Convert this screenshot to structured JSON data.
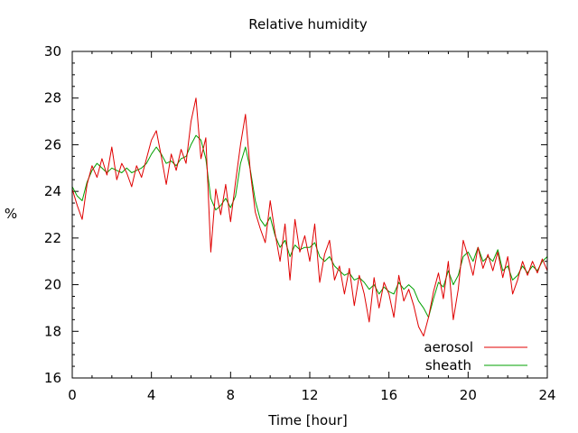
{
  "chart_data": {
    "type": "line",
    "title": "Relative humidity",
    "xlabel": "Time [hour]",
    "ylabel": "%",
    "xlim": [
      0,
      24
    ],
    "ylim": [
      16,
      30
    ],
    "x_ticks": [
      "0",
      "4",
      "8",
      "12",
      "16",
      "20",
      "24"
    ],
    "y_ticks": [
      "16",
      "18",
      "20",
      "22",
      "24",
      "26",
      "28",
      "30"
    ],
    "grid": false,
    "legend_position": "bottom-right",
    "series": [
      {
        "name": "aerosol",
        "color": "#e00000",
        "x": [
          0,
          0.25,
          0.5,
          0.75,
          1.0,
          1.25,
          1.5,
          1.75,
          2.0,
          2.25,
          2.5,
          2.75,
          3.0,
          3.25,
          3.5,
          3.75,
          4.0,
          4.25,
          4.5,
          4.75,
          5.0,
          5.25,
          5.5,
          5.75,
          6.0,
          6.25,
          6.5,
          6.75,
          7.0,
          7.25,
          7.5,
          7.75,
          8.0,
          8.25,
          8.5,
          8.75,
          9.0,
          9.25,
          9.5,
          9.75,
          10.0,
          10.25,
          10.5,
          10.75,
          11.0,
          11.25,
          11.5,
          11.75,
          12.0,
          12.25,
          12.5,
          12.75,
          13.0,
          13.25,
          13.5,
          13.75,
          14.0,
          14.25,
          14.5,
          14.75,
          15.0,
          15.25,
          15.5,
          15.75,
          16.0,
          16.25,
          16.5,
          16.75,
          17.0,
          17.25,
          17.5,
          17.75,
          18.0,
          18.25,
          18.5,
          18.75,
          19.0,
          19.25,
          19.5,
          19.75,
          20.0,
          20.25,
          20.5,
          20.75,
          21.0,
          21.25,
          21.5,
          21.75,
          22.0,
          22.25,
          22.5,
          22.75,
          23.0,
          23.25,
          23.5,
          23.75,
          24.0
        ],
        "values": [
          24.1,
          23.4,
          22.8,
          24.3,
          25.1,
          24.6,
          25.4,
          24.7,
          25.9,
          24.5,
          25.2,
          24.8,
          24.2,
          25.1,
          24.6,
          25.4,
          26.2,
          26.6,
          25.5,
          24.3,
          25.6,
          24.9,
          25.8,
          25.2,
          27.0,
          28.0,
          25.4,
          26.3,
          21.4,
          24.1,
          23.0,
          24.3,
          22.7,
          24.4,
          26.0,
          27.3,
          24.8,
          23.1,
          22.4,
          21.8,
          23.6,
          22.2,
          21.0,
          22.6,
          20.2,
          22.8,
          21.4,
          22.1,
          21.0,
          22.6,
          20.1,
          21.3,
          21.9,
          20.2,
          20.8,
          19.6,
          20.7,
          19.1,
          20.4,
          19.6,
          18.4,
          20.3,
          19.0,
          20.1,
          19.6,
          18.6,
          20.4,
          19.3,
          19.8,
          19.1,
          18.2,
          17.8,
          18.6,
          19.7,
          20.5,
          19.4,
          21.0,
          18.5,
          19.8,
          21.9,
          21.2,
          20.4,
          21.6,
          20.7,
          21.3,
          20.6,
          21.4,
          20.3,
          21.2,
          19.6,
          20.2,
          21.0,
          20.4,
          21.0,
          20.5,
          21.1,
          20.6
        ]
      },
      {
        "name": "sheath",
        "color": "#00a000",
        "x": [
          0,
          0.25,
          0.5,
          0.75,
          1.0,
          1.25,
          1.5,
          1.75,
          2.0,
          2.25,
          2.5,
          2.75,
          3.0,
          3.25,
          3.5,
          3.75,
          4.0,
          4.25,
          4.5,
          4.75,
          5.0,
          5.25,
          5.5,
          5.75,
          6.0,
          6.25,
          6.5,
          6.75,
          7.0,
          7.25,
          7.5,
          7.75,
          8.0,
          8.25,
          8.5,
          8.75,
          9.0,
          9.25,
          9.5,
          9.75,
          10.0,
          10.25,
          10.5,
          10.75,
          11.0,
          11.25,
          11.5,
          11.75,
          12.0,
          12.25,
          12.5,
          12.75,
          13.0,
          13.25,
          13.5,
          13.75,
          14.0,
          14.25,
          14.5,
          14.75,
          15.0,
          15.25,
          15.5,
          15.75,
          16.0,
          16.25,
          16.5,
          16.75,
          17.0,
          17.25,
          17.5,
          17.75,
          18.0,
          18.25,
          18.5,
          18.75,
          19.0,
          19.25,
          19.5,
          19.75,
          20.0,
          20.25,
          20.5,
          20.75,
          21.0,
          21.25,
          21.5,
          21.75,
          22.0,
          22.25,
          22.5,
          22.75,
          23.0,
          23.25,
          23.5,
          23.75,
          24.0
        ],
        "values": [
          24.2,
          23.8,
          23.6,
          24.4,
          24.9,
          25.2,
          25.0,
          24.8,
          25.0,
          24.9,
          24.8,
          25.0,
          24.8,
          24.9,
          25.0,
          25.2,
          25.6,
          25.9,
          25.6,
          25.2,
          25.3,
          25.1,
          25.4,
          25.5,
          26.0,
          26.4,
          26.2,
          25.4,
          23.7,
          23.2,
          23.4,
          23.7,
          23.3,
          23.8,
          25.2,
          25.9,
          24.9,
          23.6,
          22.8,
          22.5,
          22.9,
          22.1,
          21.6,
          21.9,
          21.2,
          21.7,
          21.5,
          21.6,
          21.6,
          21.8,
          21.2,
          21.0,
          21.2,
          20.8,
          20.6,
          20.4,
          20.5,
          20.2,
          20.3,
          20.1,
          19.8,
          20.0,
          19.6,
          19.9,
          19.7,
          19.6,
          20.1,
          19.8,
          20.0,
          19.8,
          19.3,
          19.0,
          18.6,
          19.4,
          20.1,
          19.9,
          20.6,
          20.0,
          20.4,
          21.2,
          21.4,
          21.0,
          21.6,
          21.0,
          21.2,
          21.0,
          21.5,
          20.6,
          20.8,
          20.2,
          20.4,
          20.8,
          20.5,
          20.8,
          20.6,
          21.0,
          21.2
        ]
      }
    ]
  }
}
